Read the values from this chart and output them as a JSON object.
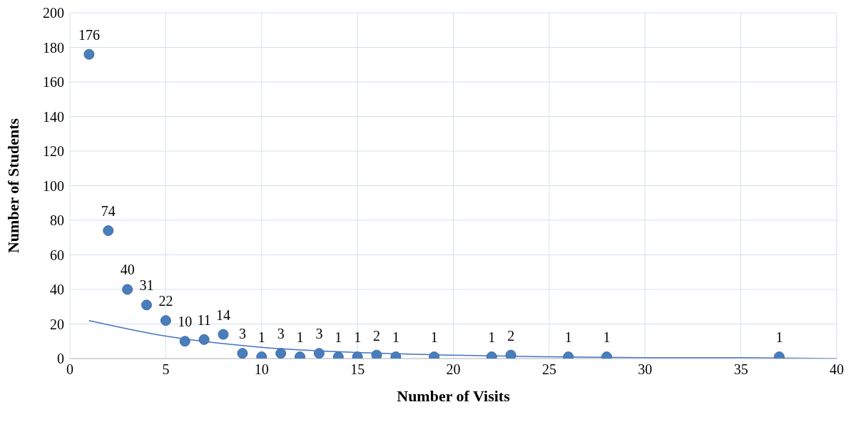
{
  "chart_data": {
    "type": "scatter",
    "xlabel": "Number of Visits",
    "ylabel": "Number of Students",
    "x": [
      1,
      2,
      3,
      4,
      5,
      6,
      7,
      8,
      9,
      10,
      11,
      12,
      13,
      14,
      15,
      16,
      17,
      19,
      22,
      23,
      26,
      28,
      37
    ],
    "series": [
      {
        "color": "#4a7ebb",
        "marker": "circle",
        "values": [
          176,
          74,
          40,
          31,
          22,
          10,
          11,
          14,
          3,
          1,
          3,
          1,
          3,
          1,
          1,
          2,
          1,
          1,
          1,
          2,
          1,
          1,
          1
        ],
        "value_labels": [
          "176",
          "74",
          "40",
          "31",
          "22",
          "10",
          "11",
          "14",
          "3",
          "1",
          "3",
          "1",
          "3",
          "1",
          "1",
          "2",
          "1",
          "1",
          "1",
          "2",
          "1",
          "1",
          "1"
        ]
      },
      {
        "type": "line",
        "color": "#4472c4",
        "marker": "none",
        "x": [
          1,
          5,
          10,
          15,
          20,
          25,
          30,
          35,
          40
        ],
        "values": [
          22,
          13,
          6.5,
          3.5,
          2,
          1,
          0.5,
          0.5,
          0
        ]
      }
    ],
    "grid": true,
    "xlim": [
      0,
      40
    ],
    "xticks": [
      0,
      5,
      10,
      15,
      20,
      25,
      30,
      35,
      40
    ],
    "ylim": [
      0,
      200
    ],
    "yticks": [
      0,
      20,
      40,
      60,
      80,
      100,
      120,
      140,
      160,
      180,
      200
    ]
  }
}
